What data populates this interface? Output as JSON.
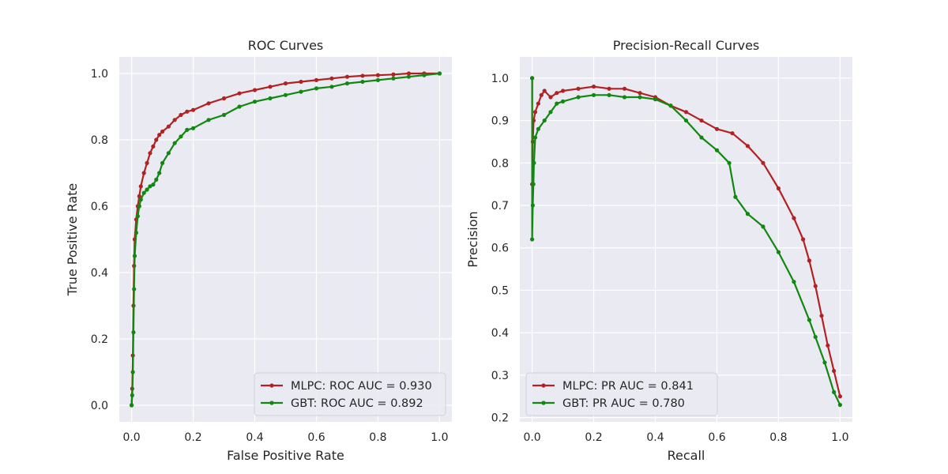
{
  "chart_data": [
    {
      "type": "line",
      "title": "ROC Curves",
      "xlabel": "False Positive Rate",
      "ylabel": "True Positive Rate",
      "xlim": [
        -0.04,
        1.04
      ],
      "ylim": [
        -0.05,
        1.05
      ],
      "xticks": [
        0.0,
        0.2,
        0.4,
        0.6,
        0.8,
        1.0
      ],
      "yticks": [
        0.0,
        0.2,
        0.4,
        0.6,
        0.8,
        1.0
      ],
      "xtick_labels": [
        "0.0",
        "0.2",
        "0.4",
        "0.6",
        "0.8",
        "1.0"
      ],
      "ytick_labels": [
        "0.0",
        "0.2",
        "0.4",
        "0.6",
        "0.8",
        "1.0"
      ],
      "grid": true,
      "legend_position": "lower-right",
      "series": [
        {
          "name": "MLPC: ROC AUC = 0.930",
          "color": "#b22222",
          "x": [
            0.0,
            0.002,
            0.004,
            0.006,
            0.008,
            0.01,
            0.015,
            0.02,
            0.025,
            0.03,
            0.04,
            0.05,
            0.06,
            0.07,
            0.08,
            0.09,
            0.1,
            0.12,
            0.14,
            0.16,
            0.18,
            0.2,
            0.25,
            0.3,
            0.35,
            0.4,
            0.45,
            0.5,
            0.55,
            0.6,
            0.65,
            0.7,
            0.75,
            0.8,
            0.85,
            0.9,
            0.95,
            1.0
          ],
          "y": [
            0.0,
            0.05,
            0.15,
            0.3,
            0.42,
            0.5,
            0.56,
            0.6,
            0.63,
            0.66,
            0.7,
            0.73,
            0.76,
            0.78,
            0.8,
            0.815,
            0.825,
            0.84,
            0.86,
            0.875,
            0.885,
            0.89,
            0.91,
            0.925,
            0.94,
            0.95,
            0.96,
            0.97,
            0.975,
            0.98,
            0.985,
            0.99,
            0.993,
            0.995,
            0.997,
            1.0,
            1.0,
            1.0
          ]
        },
        {
          "name": "GBT: ROC AUC = 0.892",
          "color": "#118811",
          "x": [
            0.0,
            0.002,
            0.004,
            0.006,
            0.008,
            0.01,
            0.015,
            0.02,
            0.025,
            0.03,
            0.04,
            0.05,
            0.06,
            0.07,
            0.08,
            0.09,
            0.1,
            0.12,
            0.14,
            0.16,
            0.18,
            0.2,
            0.25,
            0.3,
            0.35,
            0.4,
            0.45,
            0.5,
            0.55,
            0.6,
            0.65,
            0.7,
            0.75,
            0.8,
            0.85,
            0.9,
            0.95,
            1.0
          ],
          "y": [
            0.0,
            0.03,
            0.1,
            0.22,
            0.35,
            0.45,
            0.52,
            0.57,
            0.6,
            0.62,
            0.64,
            0.65,
            0.66,
            0.665,
            0.68,
            0.7,
            0.73,
            0.76,
            0.79,
            0.81,
            0.83,
            0.835,
            0.86,
            0.875,
            0.9,
            0.915,
            0.925,
            0.935,
            0.945,
            0.955,
            0.96,
            0.97,
            0.975,
            0.98,
            0.985,
            0.99,
            0.995,
            1.0
          ]
        }
      ]
    },
    {
      "type": "line",
      "title": "Precision-Recall Curves",
      "xlabel": "Recall",
      "ylabel": "Precision",
      "xlim": [
        -0.04,
        1.04
      ],
      "ylim": [
        0.19,
        1.05
      ],
      "xticks": [
        0.0,
        0.2,
        0.4,
        0.6,
        0.8,
        1.0
      ],
      "yticks": [
        0.2,
        0.3,
        0.4,
        0.5,
        0.6,
        0.7,
        0.8,
        0.9,
        1.0
      ],
      "xtick_labels": [
        "0.0",
        "0.2",
        "0.4",
        "0.6",
        "0.8",
        "1.0"
      ],
      "ytick_labels": [
        "0.2",
        "0.3",
        "0.4",
        "0.5",
        "0.6",
        "0.7",
        "0.8",
        "0.9",
        "1.0"
      ],
      "grid": true,
      "legend_position": "lower-left",
      "series": [
        {
          "name": "MLPC: PR AUC = 0.841",
          "color": "#b22222",
          "x": [
            0.0,
            0.0,
            0.002,
            0.005,
            0.01,
            0.02,
            0.03,
            0.04,
            0.06,
            0.08,
            0.1,
            0.15,
            0.2,
            0.25,
            0.3,
            0.35,
            0.4,
            0.45,
            0.5,
            0.55,
            0.6,
            0.65,
            0.7,
            0.75,
            0.8,
            0.85,
            0.88,
            0.9,
            0.92,
            0.94,
            0.96,
            0.98,
            1.0
          ],
          "y": [
            1.0,
            0.75,
            0.85,
            0.9,
            0.92,
            0.94,
            0.96,
            0.97,
            0.955,
            0.965,
            0.97,
            0.975,
            0.98,
            0.975,
            0.975,
            0.965,
            0.955,
            0.935,
            0.92,
            0.9,
            0.88,
            0.87,
            0.84,
            0.8,
            0.74,
            0.67,
            0.62,
            0.57,
            0.51,
            0.44,
            0.37,
            0.31,
            0.25
          ]
        },
        {
          "name": "GBT: PR AUC = 0.780",
          "color": "#118811",
          "x": [
            0.0,
            0.0,
            0.002,
            0.004,
            0.006,
            0.01,
            0.02,
            0.04,
            0.06,
            0.08,
            0.1,
            0.15,
            0.2,
            0.25,
            0.3,
            0.35,
            0.4,
            0.45,
            0.5,
            0.55,
            0.6,
            0.64,
            0.66,
            0.7,
            0.75,
            0.8,
            0.85,
            0.9,
            0.92,
            0.95,
            0.98,
            1.0
          ],
          "y": [
            1.0,
            0.62,
            0.7,
            0.75,
            0.8,
            0.86,
            0.88,
            0.9,
            0.92,
            0.94,
            0.945,
            0.955,
            0.96,
            0.96,
            0.955,
            0.955,
            0.95,
            0.935,
            0.9,
            0.86,
            0.83,
            0.8,
            0.72,
            0.68,
            0.65,
            0.59,
            0.52,
            0.43,
            0.39,
            0.33,
            0.26,
            0.23
          ]
        }
      ]
    }
  ]
}
